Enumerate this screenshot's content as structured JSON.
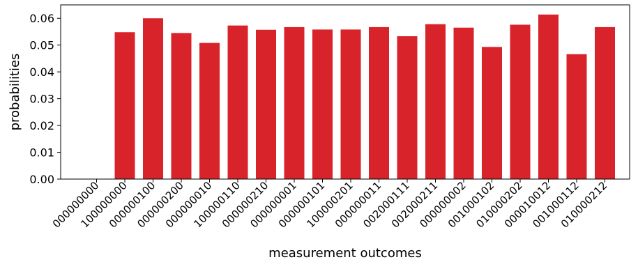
{
  "chart_data": {
    "type": "bar",
    "xlabel": "measurement outcomes",
    "ylabel": "probabilities",
    "ylim": [
      0,
      0.065
    ],
    "yticks": [
      "0.00",
      "0.01",
      "0.02",
      "0.03",
      "0.04",
      "0.05",
      "0.06"
    ],
    "grid": false,
    "bar_color": "#d9232a",
    "categories": [
      "000000000",
      "100000000",
      "000000100",
      "000000200",
      "000000010",
      "100000110",
      "000000210",
      "000000001",
      "000000101",
      "100000201",
      "000000011",
      "002000111",
      "002000211",
      "000000002",
      "001000102",
      "010000202",
      "000010012",
      "001000112",
      "010000212"
    ],
    "values": [
      0,
      0.0548,
      0.06,
      0.0545,
      0.0508,
      0.0573,
      0.0557,
      0.0567,
      0.0558,
      0.0558,
      0.0567,
      0.0533,
      0.0578,
      0.0565,
      0.0493,
      0.0576,
      0.0614,
      0.0466,
      0.0567
    ]
  }
}
